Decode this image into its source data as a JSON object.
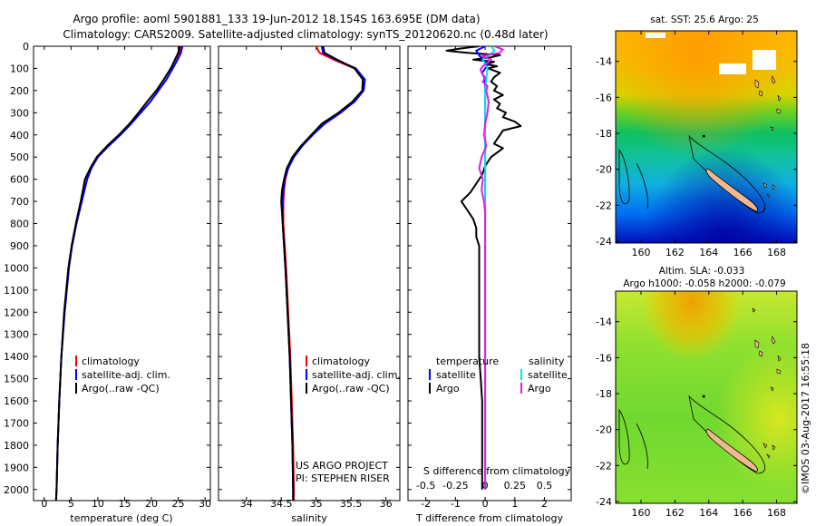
{
  "title_line1": "Argo profile: aoml 5901881_133 19-Jun-2012 18.154S 163.695E (DM data)",
  "title_line2": "Climatology: CARS2009. Satellite-adjusted climatology: synTS_20120620.nc (0.48d later)",
  "project_line1": "US ARGO PROJECT",
  "project_line2": "PI: STEPHEN RISER",
  "credit": "©IMOS 03-Aug-2017 16:55:18",
  "colors": {
    "red": "#ff0000",
    "blue": "#0000ff",
    "black": "#000000",
    "cyan": "#00e5e5",
    "magenta": "#e020e0",
    "land": "#f0b890"
  },
  "chart_data": [
    {
      "type": "line",
      "xlabel": "temperature (deg C)",
      "ylabel": "",
      "xlim": [
        -2,
        31
      ],
      "ylim": [
        2050,
        0
      ],
      "xticks": [
        0,
        5,
        10,
        15,
        20,
        25,
        30
      ],
      "yticks": [
        0,
        100,
        200,
        300,
        400,
        500,
        600,
        700,
        800,
        900,
        1000,
        1100,
        1200,
        1300,
        1400,
        1500,
        1600,
        1700,
        1800,
        1900,
        2000
      ],
      "legend": [
        "climatology",
        "satellite-adj. clim.",
        "Argo(..raw -QC)"
      ],
      "legend_position": "lower-center",
      "y": [
        0,
        30,
        60,
        100,
        150,
        200,
        250,
        300,
        350,
        400,
        450,
        500,
        550,
        600,
        650,
        700,
        800,
        900,
        1000,
        1200,
        1400,
        1600,
        1800,
        2000,
        2050
      ],
      "series": [
        {
          "name": "climatology",
          "color": "red",
          "x": [
            25.5,
            25.3,
            24.8,
            24.0,
            22.8,
            21.3,
            19.8,
            18.0,
            16.2,
            14.2,
            12.0,
            10.0,
            8.8,
            8.0,
            7.5,
            7.0,
            6.0,
            5.2,
            4.6,
            3.8,
            3.2,
            2.8,
            2.5,
            2.3,
            2.2
          ]
        },
        {
          "name": "satellite-adj. clim.",
          "color": "blue",
          "x": [
            25.8,
            25.5,
            24.9,
            24.0,
            22.8,
            21.3,
            19.8,
            18.0,
            16.2,
            14.2,
            12.0,
            10.0,
            8.8,
            8.0,
            7.5,
            7.0,
            6.0,
            5.2,
            4.6,
            3.8,
            3.2,
            2.8,
            2.5,
            2.3,
            2.2
          ]
        },
        {
          "name": "Argo(..raw -QC)",
          "color": "black",
          "x": [
            25.3,
            25.0,
            24.4,
            23.6,
            22.3,
            20.9,
            19.2,
            17.6,
            15.9,
            13.9,
            11.7,
            9.8,
            8.6,
            7.6,
            7.2,
            6.8,
            5.9,
            5.1,
            4.5,
            3.7,
            3.2,
            2.8,
            2.5,
            2.3,
            2.2
          ]
        }
      ]
    },
    {
      "type": "line",
      "xlabel": "salinity",
      "ylabel": "",
      "xlim": [
        33.6,
        36.2
      ],
      "ylim": [
        2050,
        0
      ],
      "xticks": [
        34,
        34.5,
        35,
        35.5,
        36
      ],
      "legend": [
        "climatology",
        "satellite-adj. clim.",
        "Argo(..raw -QC)"
      ],
      "legend_position": "lower-right",
      "y": [
        0,
        30,
        60,
        100,
        150,
        200,
        250,
        300,
        350,
        400,
        450,
        500,
        550,
        600,
        650,
        700,
        750,
        800,
        900,
        1000,
        1200,
        1400,
        1600,
        1800,
        2000,
        2050
      ],
      "series": [
        {
          "name": "climatology",
          "color": "red",
          "x": [
            35.0,
            35.05,
            35.25,
            35.55,
            35.7,
            35.68,
            35.55,
            35.35,
            35.12,
            34.95,
            34.8,
            34.68,
            34.6,
            34.56,
            34.54,
            34.53,
            34.53,
            34.53,
            34.55,
            34.57,
            34.6,
            34.63,
            34.65,
            34.67,
            34.68,
            34.68
          ]
        },
        {
          "name": "satellite-adj. clim.",
          "color": "blue",
          "x": [
            35.08,
            35.1,
            35.28,
            35.57,
            35.7,
            35.68,
            35.55,
            35.35,
            35.12,
            34.95,
            34.8,
            34.68,
            34.6,
            34.55,
            34.53,
            34.52,
            34.52,
            34.52,
            34.54,
            34.56,
            34.59,
            34.62,
            34.64,
            34.66,
            34.67,
            34.67
          ]
        },
        {
          "name": "Argo(..raw -QC)",
          "color": "black",
          "x": [
            35.1,
            35.12,
            35.3,
            35.55,
            35.67,
            35.66,
            35.52,
            35.32,
            35.08,
            34.93,
            34.78,
            34.66,
            34.58,
            34.54,
            34.51,
            34.5,
            34.51,
            34.52,
            34.54,
            34.56,
            34.59,
            34.62,
            34.64,
            34.66,
            34.67,
            34.67
          ]
        }
      ]
    },
    {
      "type": "line",
      "xlabel": "T difference from climatology",
      "x2label": "S difference from climatology",
      "ylabel": "",
      "xlim": [
        -2.6,
        2.9
      ],
      "x2lim": [
        -0.65,
        0.725
      ],
      "ylim": [
        2050,
        0
      ],
      "xticks": [
        -2,
        -1,
        0,
        1,
        2
      ],
      "x2ticks": [
        -0.5,
        -0.25,
        0,
        0.25,
        0.5
      ],
      "legend_left_title": "temperature",
      "legend_right_title": "salinity",
      "legend": [
        "satellite",
        "Argo",
        "satellite",
        "Argo"
      ],
      "temperature_series": [
        {
          "name": "satellite",
          "color": "blue",
          "y": [
            0,
            20,
            40,
            60,
            80,
            100,
            120,
            150,
            200,
            300,
            400,
            500,
            600,
            700,
            800,
            1000,
            1500,
            2000
          ],
          "x": [
            0.0,
            -0.3,
            -0.2,
            -0.1,
            0.1,
            0.0,
            -0.1,
            0.0,
            0.0,
            0.0,
            0.0,
            0.0,
            0.0,
            0.0,
            0.0,
            0.0,
            0.0,
            0.0
          ]
        },
        {
          "name": "Argo",
          "color": "black",
          "y": [
            0,
            10,
            20,
            30,
            40,
            50,
            60,
            70,
            80,
            90,
            100,
            120,
            140,
            160,
            180,
            200,
            220,
            240,
            260,
            280,
            300,
            320,
            340,
            360,
            380,
            400,
            420,
            440,
            460,
            480,
            500,
            540,
            580,
            620,
            660,
            700,
            740,
            780,
            820,
            860,
            900,
            1000,
            1100,
            1200,
            1300,
            1400,
            1500,
            1600,
            1700,
            1800,
            1900,
            2000
          ],
          "x": [
            -0.2,
            -0.8,
            -1.3,
            -0.6,
            0.5,
            0.2,
            -0.4,
            0.3,
            0.0,
            0.4,
            0.1,
            0.5,
            0.3,
            0.2,
            0.4,
            0.3,
            0.6,
            0.3,
            0.5,
            0.4,
            0.7,
            0.6,
            1.0,
            1.2,
            0.6,
            0.5,
            0.4,
            0.3,
            0.6,
            0.4,
            0.2,
            0.0,
            -0.1,
            -0.3,
            -0.5,
            -0.8,
            -0.6,
            -0.4,
            -0.3,
            -0.3,
            -0.2,
            -0.2,
            -0.2,
            -0.2,
            -0.2,
            -0.2,
            -0.15,
            -0.1,
            -0.1,
            -0.1,
            -0.1,
            -0.1
          ]
        }
      ],
      "salinity_series": [
        {
          "name": "satellite",
          "color": "cyan",
          "y": [
            0,
            20,
            40,
            60,
            80,
            100,
            150,
            200,
            300,
            400,
            500,
            600,
            700,
            1000,
            1500,
            2000
          ],
          "x": [
            0.05,
            0.08,
            0.03,
            -0.02,
            0.0,
            0.02,
            0.01,
            0.0,
            0.0,
            0.0,
            0.0,
            0.0,
            0.0,
            0.0,
            0.0,
            0.0
          ]
        },
        {
          "name": "Argo",
          "color": "magenta",
          "y": [
            0,
            15,
            30,
            45,
            60,
            75,
            90,
            105,
            120,
            140,
            160,
            180,
            200,
            250,
            300,
            350,
            400,
            450,
            500,
            550,
            600,
            650,
            700,
            750,
            800,
            900,
            1000,
            1500,
            2000
          ],
          "x": [
            0.08,
            0.15,
            0.12,
            -0.03,
            0.05,
            0.02,
            -0.02,
            -0.04,
            -0.03,
            0.0,
            -0.02,
            0.02,
            0.01,
            0.03,
            0.02,
            0.0,
            -0.01,
            0.01,
            -0.03,
            -0.05,
            -0.02,
            -0.03,
            -0.01,
            0.0,
            0.0,
            0.0,
            0.0,
            0.0,
            0.0
          ]
        }
      ]
    },
    {
      "type": "heatmap",
      "title": "sat. SST: 25.6 Argo: 25",
      "xlim": [
        158.5,
        169.2
      ],
      "ylim": [
        -24.1,
        -12.3
      ],
      "xticks": [
        160,
        162,
        164,
        166,
        168
      ],
      "yticks": [
        -14,
        -16,
        -18,
        -20,
        -22,
        -24
      ],
      "argo_position": {
        "lon": 163.695,
        "lat": -18.154
      }
    },
    {
      "type": "heatmap",
      "title": "Altim. SLA: -0.033",
      "subtitle": "Argo h1000: -0.058 h2000: -0.079",
      "xlim": [
        158.5,
        169.2
      ],
      "ylim": [
        -24.1,
        -12.3
      ],
      "xticks": [
        160,
        162,
        164,
        166,
        168
      ],
      "yticks": [
        -14,
        -16,
        -18,
        -20,
        -22,
        -24
      ],
      "argo_position": {
        "lon": 163.695,
        "lat": -18.154
      }
    }
  ]
}
